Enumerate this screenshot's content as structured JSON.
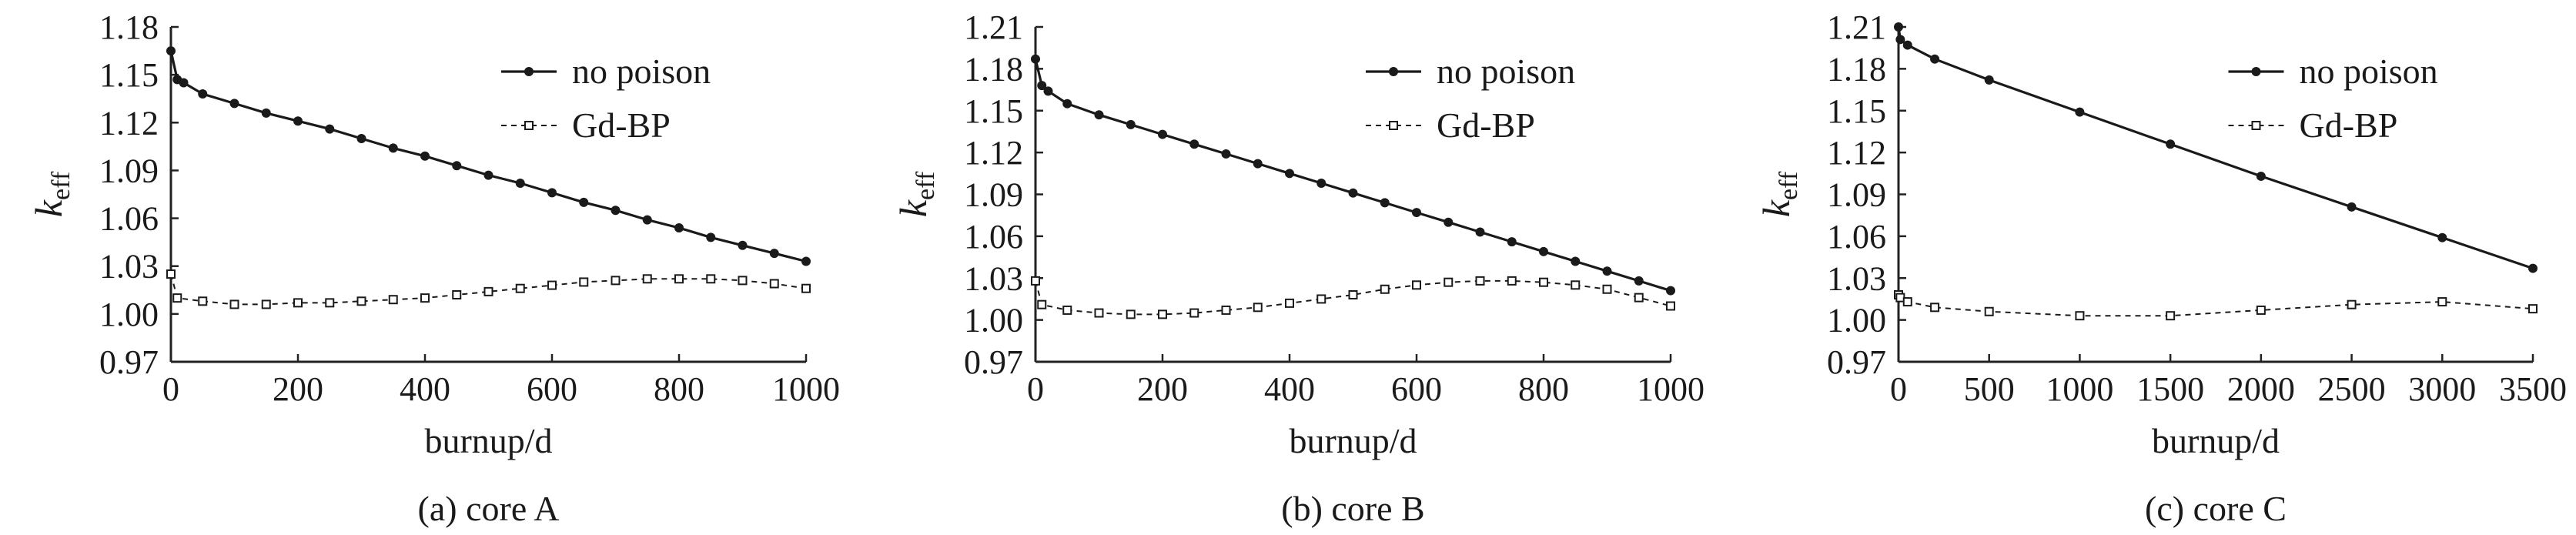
{
  "chart_data": [
    {
      "type": "line",
      "caption": "(a) core A",
      "xlabel": "burnup/d",
      "ylabel": "k",
      "ylabel_sub": "eff",
      "xlim": [
        0,
        1000
      ],
      "ylim": [
        0.97,
        1.18
      ],
      "xticks": [
        "0",
        "200",
        "400",
        "600",
        "800",
        "1000"
      ],
      "yticks": [
        "0.97",
        "1.00",
        "1.03",
        "1.06",
        "1.09",
        "1.12",
        "1.15",
        "1.18"
      ],
      "legend_position": "top-right",
      "series": [
        {
          "name": "no poison",
          "style": "solid",
          "marker": "circle",
          "x": [
            0,
            10,
            20,
            50,
            100,
            150,
            200,
            250,
            300,
            350,
            400,
            450,
            500,
            550,
            600,
            650,
            700,
            750,
            800,
            850,
            900,
            950,
            1000
          ],
          "y": [
            1.165,
            1.147,
            1.145,
            1.138,
            1.132,
            1.126,
            1.121,
            1.116,
            1.11,
            1.104,
            1.099,
            1.093,
            1.087,
            1.082,
            1.076,
            1.07,
            1.065,
            1.059,
            1.054,
            1.048,
            1.043,
            1.038,
            1.033
          ]
        },
        {
          "name": "Gd-BP",
          "style": "dashed",
          "marker": "square",
          "x": [
            0,
            10,
            50,
            100,
            150,
            200,
            250,
            300,
            350,
            400,
            450,
            500,
            550,
            600,
            650,
            700,
            750,
            800,
            850,
            900,
            950,
            1000
          ],
          "y": [
            1.025,
            1.01,
            1.008,
            1.006,
            1.006,
            1.007,
            1.007,
            1.008,
            1.009,
            1.01,
            1.012,
            1.014,
            1.016,
            1.018,
            1.02,
            1.021,
            1.022,
            1.022,
            1.022,
            1.021,
            1.019,
            1.016
          ]
        }
      ]
    },
    {
      "type": "line",
      "caption": "(b) core B",
      "xlabel": "burnup/d",
      "ylabel": "k",
      "ylabel_sub": "eff",
      "xlim": [
        0,
        1000
      ],
      "ylim": [
        0.97,
        1.21
      ],
      "xticks": [
        "0",
        "200",
        "400",
        "600",
        "800",
        "1000"
      ],
      "yticks": [
        "0.97",
        "1.00",
        "1.03",
        "1.06",
        "1.09",
        "1.12",
        "1.15",
        "1.18",
        "1.21"
      ],
      "legend_position": "top-right",
      "series": [
        {
          "name": "no poison",
          "style": "solid",
          "marker": "circle",
          "x": [
            0,
            10,
            20,
            50,
            100,
            150,
            200,
            250,
            300,
            350,
            400,
            450,
            500,
            550,
            600,
            650,
            700,
            750,
            800,
            850,
            900,
            950,
            1000
          ],
          "y": [
            1.187,
            1.168,
            1.164,
            1.155,
            1.147,
            1.14,
            1.133,
            1.126,
            1.119,
            1.112,
            1.105,
            1.098,
            1.091,
            1.084,
            1.077,
            1.07,
            1.063,
            1.056,
            1.049,
            1.042,
            1.035,
            1.028,
            1.021
          ]
        },
        {
          "name": "Gd-BP",
          "style": "dashed",
          "marker": "square",
          "x": [
            0,
            10,
            50,
            100,
            150,
            200,
            250,
            300,
            350,
            400,
            450,
            500,
            550,
            600,
            650,
            700,
            750,
            800,
            850,
            900,
            950,
            1000
          ],
          "y": [
            1.028,
            1.011,
            1.007,
            1.005,
            1.004,
            1.004,
            1.005,
            1.007,
            1.009,
            1.012,
            1.015,
            1.018,
            1.022,
            1.025,
            1.027,
            1.028,
            1.028,
            1.027,
            1.025,
            1.022,
            1.016,
            1.01
          ]
        }
      ]
    },
    {
      "type": "line",
      "caption": "(c) core C",
      "xlabel": "burnup/d",
      "ylabel": "k",
      "ylabel_sub": "eff",
      "xlim": [
        0,
        3500
      ],
      "ylim": [
        0.97,
        1.21
      ],
      "xticks": [
        "0",
        "500",
        "1000",
        "1500",
        "2000",
        "2500",
        "3000",
        "3500"
      ],
      "yticks": [
        "0.97",
        "1.00",
        "1.03",
        "1.06",
        "1.09",
        "1.12",
        "1.15",
        "1.18",
        "1.21"
      ],
      "legend_position": "top-right",
      "series": [
        {
          "name": "no poison",
          "style": "solid",
          "marker": "circle",
          "x": [
            0,
            10,
            50,
            200,
            500,
            1000,
            1500,
            2000,
            2500,
            3000,
            3500
          ],
          "y": [
            1.21,
            1.201,
            1.197,
            1.187,
            1.172,
            1.149,
            1.126,
            1.103,
            1.081,
            1.059,
            1.037
          ]
        },
        {
          "name": "Gd-BP",
          "style": "dashed",
          "marker": "square",
          "x": [
            0,
            10,
            50,
            200,
            500,
            1000,
            1500,
            2000,
            2500,
            3000,
            3500
          ],
          "y": [
            1.018,
            1.016,
            1.013,
            1.009,
            1.006,
            1.003,
            1.003,
            1.007,
            1.011,
            1.013,
            1.008
          ]
        }
      ]
    }
  ]
}
